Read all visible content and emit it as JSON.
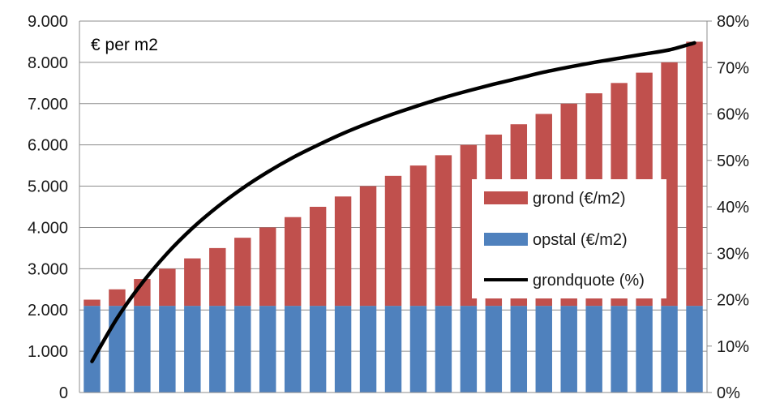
{
  "chart_data": {
    "type": "bar",
    "stacked": true,
    "title": "€ per m2",
    "categories": [
      "",
      "",
      "",
      "",
      "",
      "",
      "",
      "",
      "",
      "",
      "",
      "",
      "",
      "",
      "",
      "",
      "",
      "",
      "",
      "",
      "",
      "",
      "",
      "",
      ""
    ],
    "series": [
      {
        "name": "opstal (€/m2)",
        "kind": "bar",
        "axis": "left",
        "color": "#4f81bd",
        "values": [
          2100,
          2100,
          2100,
          2100,
          2100,
          2100,
          2100,
          2100,
          2100,
          2100,
          2100,
          2100,
          2100,
          2100,
          2100,
          2100,
          2100,
          2100,
          2100,
          2100,
          2100,
          2100,
          2100,
          2100,
          2100
        ]
      },
      {
        "name": "grond (€/m2)",
        "kind": "bar",
        "axis": "left",
        "color": "#c0504d",
        "values": [
          150,
          400,
          650,
          900,
          1150,
          1400,
          1650,
          1900,
          2150,
          2400,
          2650,
          2900,
          3150,
          3400,
          3650,
          3900,
          4150,
          4400,
          4650,
          4900,
          5150,
          5400,
          5650,
          5900,
          6400
        ]
      },
      {
        "name": "grondquote (%)",
        "kind": "line",
        "axis": "right",
        "color": "#000000",
        "values": [
          6.7,
          16,
          23.6,
          30,
          35.4,
          40,
          44,
          47.5,
          50.6,
          53.3,
          55.8,
          58,
          60,
          61.8,
          63.5,
          65,
          66.4,
          67.7,
          69,
          70.1,
          71.1,
          72,
          72.9,
          73.8,
          75.3
        ]
      }
    ],
    "y_left": {
      "min": 0,
      "max": 9000,
      "ticks": [
        "0",
        "1.000",
        "2.000",
        "3.000",
        "4.000",
        "5.000",
        "6.000",
        "7.000",
        "8.000",
        "9.000"
      ]
    },
    "y_right": {
      "min": 0,
      "max": 80,
      "ticks": [
        "0%",
        "10%",
        "20%",
        "30%",
        "40%",
        "50%",
        "60%",
        "70%",
        "80%"
      ]
    },
    "grid": true,
    "legend_position": "bottom-right-inside"
  }
}
